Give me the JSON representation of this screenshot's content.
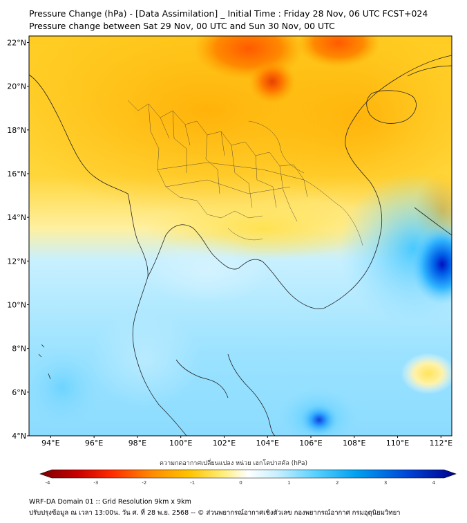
{
  "header": {
    "title": "Pressure Change (hPa) - [Data Assimilation] _ Initial Time : Friday 28 Nov, 06 UTC FCST+024",
    "subtitle": "Pressure change between Sat 29 Nov, 00 UTC and Sun 30 Nov, 00 UTC"
  },
  "map": {
    "lat_labels": [
      "22°N",
      "20°N",
      "18°N",
      "16°N",
      "14°N",
      "12°N",
      "10°N",
      "8°N",
      "6°N",
      "4°N"
    ],
    "lon_labels": [
      "94°E",
      "96°E",
      "98°E",
      "100°E",
      "102°E",
      "104°E",
      "106°E",
      "108°E",
      "110°E",
      "112°E"
    ],
    "lat_range": [
      4,
      22.3
    ],
    "lon_range": [
      93,
      112.5
    ]
  },
  "colorbar": {
    "title": "ความกดอากาศเปลี่ยนแปลง หน่วย เฮกโตปาสคัล (hPa)",
    "ticks": [
      "-4",
      "-3",
      "-2",
      "-1",
      "0",
      "1",
      "2",
      "3",
      "4"
    ],
    "range": [
      -4,
      4
    ],
    "colors": [
      "#7a0000",
      "#d40000",
      "#ff3300",
      "#ff8c00",
      "#ffc400",
      "#fff07a",
      "#ffffff",
      "#c8f0ff",
      "#5ad2ff",
      "#00a0f0",
      "#0050d8",
      "#00008c"
    ]
  },
  "footer": {
    "line1": "WRF-DA Domain 01 :: Grid Resolution 9km x 9km",
    "line2": "ปรับปรุงข้อมูล ณ เวลา 13:00น. วัน ศ. ที่ 28 พ.ย. 2568 -- © ส่วนพยากรณ์อากาศเชิงตัวเลข กองพยากรณ์อากาศ กรมอุตุนิยมวิทยา"
  },
  "colors": {
    "positive_max": "#0000c8",
    "negative_max": "#ff4000",
    "neutral_warm": "#ffd21e",
    "neutral_cool": "#aaeeff",
    "coastline": "#222222"
  }
}
